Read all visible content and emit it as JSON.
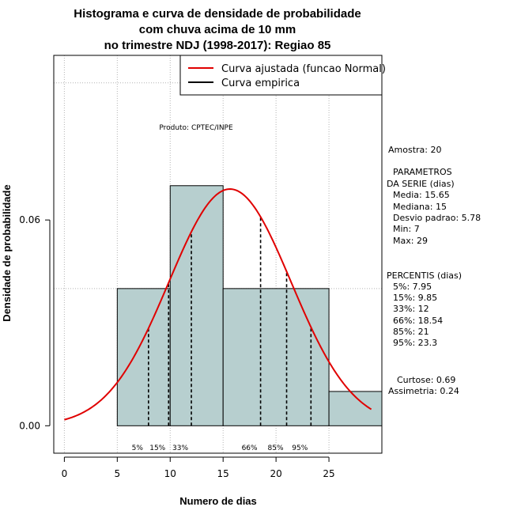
{
  "chart_data": {
    "type": "bar",
    "title_lines": [
      "Histograma e curva de densidade de probabilidade",
      "com chuva acima de 10 mm",
      "no trimestre NDJ (1998-2017): Regiao 85"
    ],
    "xlabel": "Numero de dias",
    "ylabel": "Densidade de probabilidade",
    "xlim": [
      -1,
      30
    ],
    "ylim": [
      -0.008,
      0.108
    ],
    "x_ticks": [
      0,
      5,
      10,
      15,
      20,
      25
    ],
    "y_ticks": [
      0.0,
      0.06
    ],
    "y_tick_labels": [
      "0.00",
      "0.06"
    ],
    "grid": true,
    "grid_x": [
      0,
      5,
      10,
      15,
      20,
      25
    ],
    "grid_y": [
      0.04,
      0.1
    ],
    "bar_color": "#b7cfcf",
    "curve_color": "#e00000",
    "bins": [
      {
        "from": 5,
        "to": 10,
        "density": 0.04
      },
      {
        "from": 10,
        "to": 15,
        "density": 0.07
      },
      {
        "from": 15,
        "to": 25,
        "density": 0.04
      },
      {
        "from": 25,
        "to": 30,
        "density": 0.01
      }
    ],
    "normal_fit": {
      "mean": 15.65,
      "sd": 5.78,
      "x_from": 0,
      "x_to": 29
    },
    "percentile_lines": [
      {
        "label": "5%",
        "x": 7.95
      },
      {
        "label": "15%",
        "x": 9.85
      },
      {
        "label": "33%",
        "x": 12
      },
      {
        "label": "66%",
        "x": 18.54
      },
      {
        "label": "85%",
        "x": 21
      },
      {
        "label": "95%",
        "x": 23.3
      }
    ],
    "legend": {
      "position": "top-right",
      "entries": [
        {
          "label": "Curva ajustada (funcao Normal)",
          "color": "#e00000"
        },
        {
          "label": "Curva empirica",
          "color": "#000000"
        }
      ]
    },
    "credit": "Produto: CPTEC/INPE"
  },
  "stats_panel": {
    "sample": "Amostra: 20",
    "params_title_1": "PARAMETROS",
    "params_title_2": "DA SERIE (dias)",
    "media": "Media: 15.65",
    "mediana": "Mediana: 15",
    "desvio": "Desvio padrao: 5.78",
    "min": "Min: 7",
    "max": "Max: 29",
    "percentis_title": "PERCENTIS (dias)",
    "p5": "5%: 7.95",
    "p15": "15%: 9.85",
    "p33": "33%: 12",
    "p66": "66%: 18.54",
    "p85": "85%: 21",
    "p95": "95%: 23.3",
    "curtose": "Curtose: 0.69",
    "assimetria": "Assimetria: 0.24"
  }
}
